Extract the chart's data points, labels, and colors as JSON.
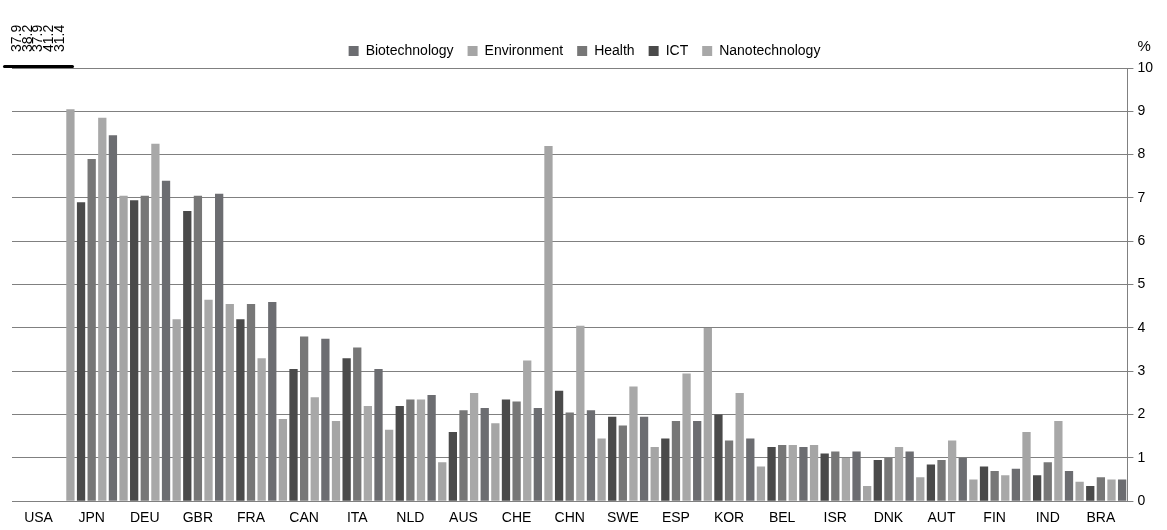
{
  "chart_data": {
    "type": "bar",
    "ylabel": "%",
    "categories": [
      "USA",
      "JPN",
      "DEU",
      "GBR",
      "FRA",
      "CAN",
      "ITA",
      "NLD",
      "AUS",
      "CHE",
      "CHN",
      "SWE",
      "ESP",
      "KOR",
      "BEL",
      "ISR",
      "DNK",
      "AUT",
      "FIN",
      "IND",
      "BRA"
    ],
    "series": [
      {
        "name": "Environment",
        "color": "#a5a5a5",
        "values": [
          null,
          9.05,
          7.05,
          4.2,
          4.55,
          1.9,
          1.85,
          1.65,
          0.9,
          1.8,
          8.2,
          1.45,
          1.25,
          4.0,
          0.8,
          1.3,
          0.35,
          0.55,
          0.5,
          1.6,
          0.45
        ],
        "value_labels": [
          "37.9",
          null,
          null,
          null,
          null,
          null,
          null,
          null,
          null,
          null,
          null,
          null,
          null,
          null,
          null,
          null,
          null,
          null,
          null,
          null,
          null
        ]
      },
      {
        "name": "ICT",
        "color": "#4a4a4a",
        "values": [
          null,
          6.9,
          6.95,
          6.7,
          4.2,
          3.05,
          3.3,
          2.2,
          1.6,
          2.35,
          2.55,
          1.95,
          1.45,
          2.0,
          1.25,
          1.1,
          0.95,
          0.85,
          0.8,
          0.6,
          0.35
        ],
        "value_labels": [
          "38.2",
          null,
          null,
          null,
          null,
          null,
          null,
          null,
          null,
          null,
          null,
          null,
          null,
          null,
          null,
          null,
          null,
          null,
          null,
          null,
          null
        ]
      },
      {
        "name": "Health",
        "color": "#777777",
        "values": [
          null,
          7.9,
          7.05,
          7.05,
          4.55,
          3.8,
          3.55,
          2.35,
          2.1,
          2.3,
          2.05,
          1.75,
          1.85,
          1.4,
          1.3,
          1.15,
          1.0,
          0.95,
          0.7,
          0.9,
          0.55
        ],
        "value_labels": [
          "37.9",
          null,
          null,
          null,
          null,
          null,
          null,
          null,
          null,
          null,
          null,
          null,
          null,
          null,
          null,
          null,
          null,
          null,
          null,
          null,
          null
        ]
      },
      {
        "name": "Nanotechnology",
        "color": "#a8a8a8",
        "values": [
          null,
          8.85,
          8.25,
          4.65,
          3.3,
          2.4,
          2.2,
          2.35,
          2.5,
          3.25,
          4.05,
          2.65,
          2.95,
          2.5,
          1.3,
          1.0,
          1.25,
          1.4,
          0.6,
          1.85,
          0.5
        ],
        "value_labels": [
          "41.2",
          null,
          null,
          null,
          null,
          null,
          null,
          null,
          null,
          null,
          null,
          null,
          null,
          null,
          null,
          null,
          null,
          null,
          null,
          null,
          null
        ]
      },
      {
        "name": "Biotechnology",
        "color": "#6c6d71",
        "values": [
          null,
          8.45,
          7.4,
          7.1,
          4.6,
          3.75,
          3.05,
          2.45,
          2.15,
          2.15,
          2.1,
          1.95,
          1.85,
          1.45,
          1.25,
          1.15,
          1.15,
          1.0,
          0.75,
          0.7,
          0.5
        ],
        "value_labels": [
          "31.4",
          null,
          null,
          null,
          null,
          null,
          null,
          null,
          null,
          null,
          null,
          null,
          null,
          null,
          null,
          null,
          null,
          null,
          null,
          null,
          null
        ]
      }
    ],
    "ylim": [
      0,
      10
    ],
    "yticks": [
      0,
      1,
      2,
      3,
      4,
      5,
      6,
      7,
      8,
      9,
      10
    ],
    "grid": "y",
    "legend": "top"
  }
}
